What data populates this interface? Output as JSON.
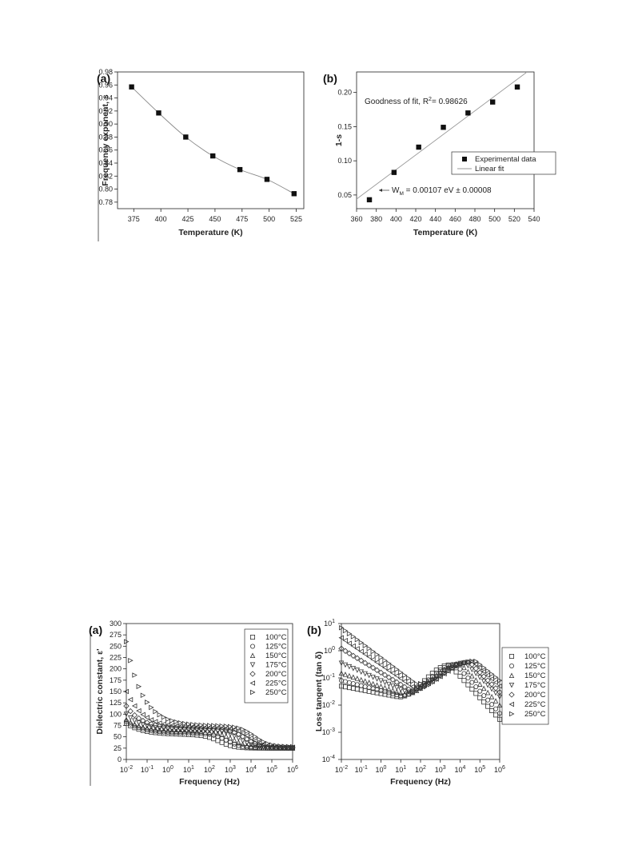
{
  "chart_data": [
    {
      "panel_label": "(a)",
      "type": "scatter",
      "xlabel": "Temperature (K)",
      "ylabel": "Frequency exponent, s",
      "xlim": [
        360,
        532
      ],
      "ylim": [
        0.77,
        0.98
      ],
      "xticks": [
        "375",
        "400",
        "425",
        "450",
        "475",
        "500",
        "525"
      ],
      "yticks": [
        "0.78",
        "0.80",
        "0.82",
        "0.84",
        "0.86",
        "0.88",
        "0.90",
        "0.92",
        "0.94",
        "0.96",
        "0.98"
      ],
      "x": [
        373,
        398,
        423,
        448,
        473,
        498,
        523
      ],
      "y": [
        0.957,
        0.917,
        0.88,
        0.851,
        0.83,
        0.815,
        0.793
      ],
      "curve": "smooth line through points",
      "grid": false
    },
    {
      "panel_label": "(b)",
      "type": "scatter",
      "xlabel": "Temperature (K)",
      "ylabel": "1-s",
      "xlim": [
        360,
        540
      ],
      "ylim": [
        0.03,
        0.23
      ],
      "xticks": [
        "360",
        "380",
        "400",
        "420",
        "440",
        "460",
        "480",
        "500",
        "520",
        "540"
      ],
      "yticks": [
        "0.05",
        "0.10",
        "0.15",
        "0.20"
      ],
      "series": [
        {
          "name": "Experimental data",
          "marker": "filled-square",
          "x": [
            373,
            398,
            423,
            448,
            473,
            498,
            523
          ],
          "y": [
            0.043,
            0.083,
            0.12,
            0.149,
            0.17,
            0.186,
            0.208
          ]
        },
        {
          "name": "Linear fit",
          "marker": "line",
          "x": [
            360,
            532
          ],
          "y": [
            0.044,
            0.229
          ]
        }
      ],
      "legend": "right",
      "annotations": {
        "fit": "Goodness of fit, R",
        "fit_sup": "2",
        "fit_val": "= 0.98626",
        "wm_w": "W",
        "wm_sub": "M",
        "wm_rest": "= 0.00107 eV ± 0.00008"
      },
      "grid": false
    },
    {
      "panel_label": "(a)",
      "type": "scatter",
      "xlabel": "Frequency (Hz)",
      "ylabel": "Dielectric constant, ε'",
      "xscale": "log",
      "xlim": [
        0.01,
        1000000
      ],
      "ylim": [
        0,
        300
      ],
      "xtick_base": "10",
      "xtick_exponents": [
        "-2",
        "-1",
        "0",
        "1",
        "2",
        "3",
        "4",
        "5",
        "6"
      ],
      "yticks": [
        "0",
        "25",
        "50",
        "75",
        "100",
        "125",
        "150",
        "175",
        "200",
        "225",
        "250",
        "275",
        "300"
      ],
      "legend": "top-right",
      "series_labels": [
        "100°C",
        "125°C",
        "150°C",
        "175°C",
        "200°C",
        "225°C",
        "250°C"
      ],
      "markers": [
        "square",
        "circle",
        "triangle-up",
        "triangle-down",
        "diamond",
        "triangle-left",
        "triangle-right"
      ],
      "series_params": [
        {
          "name": "100°C",
          "low_freq_value": 80,
          "plateau": 55,
          "relax_freq": 300,
          "high_freq_value": 25
        },
        {
          "name": "125°C",
          "low_freq_value": 84,
          "plateau": 58,
          "relax_freq": 700,
          "high_freq_value": 25
        },
        {
          "name": "150°C",
          "low_freq_value": 88,
          "plateau": 61,
          "relax_freq": 1500,
          "high_freq_value": 25
        },
        {
          "name": "175°C",
          "low_freq_value": 100,
          "plateau": 64,
          "relax_freq": 3000,
          "high_freq_value": 25
        },
        {
          "name": "200°C",
          "low_freq_value": 118,
          "plateau": 67,
          "relax_freq": 5500,
          "high_freq_value": 26
        },
        {
          "name": "225°C",
          "low_freq_value": 150,
          "plateau": 70,
          "relax_freq": 9000,
          "high_freq_value": 27
        },
        {
          "name": "250°C",
          "low_freq_value": 260,
          "plateau": 74,
          "relax_freq": 15000,
          "high_freq_value": 28
        }
      ],
      "grid": false
    },
    {
      "panel_label": "(b)",
      "type": "scatter",
      "xlabel": "Frequency (Hz)",
      "ylabel": "Loss tangent (tan δ)",
      "xscale": "log",
      "yscale": "log",
      "xlim": [
        0.01,
        1000000
      ],
      "ylim": [
        0.0001,
        10
      ],
      "xtick_base": "10",
      "xtick_exponents": [
        "-2",
        "-1",
        "0",
        "1",
        "2",
        "3",
        "4",
        "5",
        "6"
      ],
      "ytick_base": "10",
      "ytick_exponents": [
        "-4",
        "-3",
        "-2",
        "-1",
        "0",
        "1"
      ],
      "legend": "right",
      "series_labels": [
        "100°C",
        "125°C",
        "150°C",
        "175°C",
        "200°C",
        "225°C",
        "250°C"
      ],
      "markers": [
        "square",
        "circle",
        "triangle-up",
        "triangle-down",
        "diamond",
        "triangle-left",
        "triangle-right"
      ],
      "series_params": [
        {
          "name": "100°C",
          "start": 0.05,
          "min_freq": 8,
          "min": 0.02,
          "peak_freq": 3000,
          "peak": 0.3,
          "end": 0.003
        },
        {
          "name": "125°C",
          "start": 0.08,
          "min_freq": 10,
          "min": 0.022,
          "peak_freq": 6000,
          "peak": 0.32,
          "end": 0.005
        },
        {
          "name": "150°C",
          "start": 0.15,
          "min_freq": 15,
          "min": 0.025,
          "peak_freq": 10000,
          "peak": 0.34,
          "end": 0.01
        },
        {
          "name": "175°C",
          "start": 0.35,
          "min_freq": 20,
          "min": 0.03,
          "peak_freq": 18000,
          "peak": 0.36,
          "end": 0.02
        },
        {
          "name": "200°C",
          "start": 1.2,
          "min_freq": 30,
          "min": 0.035,
          "peak_freq": 30000,
          "peak": 0.38,
          "end": 0.03
        },
        {
          "name": "225°C",
          "start": 3.0,
          "min_freq": 45,
          "min": 0.045,
          "peak_freq": 45000,
          "peak": 0.4,
          "end": 0.05
        },
        {
          "name": "250°C",
          "start": 7.0,
          "min_freq": 60,
          "min": 0.06,
          "peak_freq": 60000,
          "peak": 0.42,
          "end": 0.08
        }
      ],
      "grid": false
    }
  ]
}
